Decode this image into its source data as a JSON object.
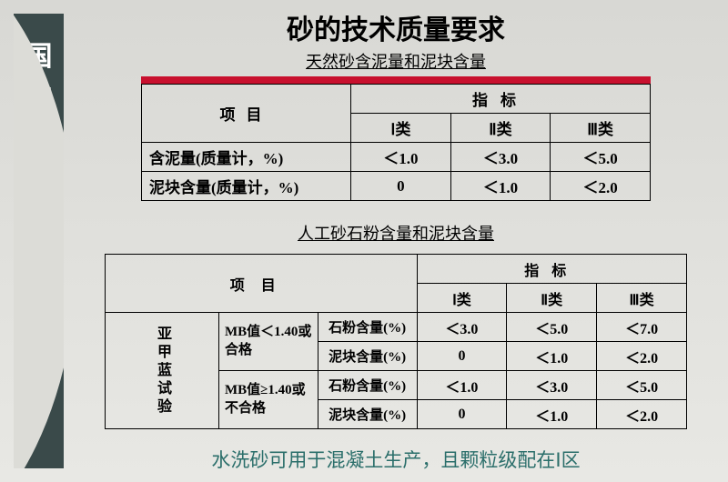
{
  "sidebar": {
    "label": "国家建筑用砂标准"
  },
  "header": {
    "title": "砂的技术质量要求",
    "subtitle1": "天然砂含泥量和泥块含量",
    "subtitle2": "人工砂石粉含量和泥块含量"
  },
  "table1": {
    "header_item": "项目",
    "header_indicator": "指标",
    "cols": {
      "c1": "Ⅰ类",
      "c2": "Ⅱ类",
      "c3": "Ⅲ类"
    },
    "rows": [
      {
        "label": "含泥量(质量计，%)",
        "v1": "＜1.0",
        "v2": "＜3.0",
        "v3": "＜5.0"
      },
      {
        "label": "泥块含量(质量计，%)",
        "v1": "0",
        "v2": "＜1.0",
        "v3": "＜2.0"
      }
    ]
  },
  "table2": {
    "side_label": "亚甲蓝试验",
    "header_item": "项目",
    "header_indicator": "指标",
    "cols": {
      "c1": "Ⅰ类",
      "c2": "Ⅱ类",
      "c3": "Ⅲ类"
    },
    "groups": [
      {
        "mb_label": "MB值＜1.40或合格",
        "rows": [
          {
            "param": "石粉含量(%)",
            "v1": "＜3.0",
            "v2": "＜5.0",
            "v3": "＜7.0"
          },
          {
            "param": "泥块含量(%)",
            "v1": "0",
            "v2": "＜1.0",
            "v3": "＜2.0"
          }
        ]
      },
      {
        "mb_label": "MB值≥1.40或不合格",
        "rows": [
          {
            "param": "石粉含量(%)",
            "v1": "＜1.0",
            "v2": "＜3.0",
            "v3": "＜5.0"
          },
          {
            "param": "泥块含量(%)",
            "v1": "0",
            "v2": "＜1.0",
            "v3": "＜2.0"
          }
        ]
      }
    ]
  },
  "footnote": "水洗砂可用于混凝土生产，且颗粒级配在Ⅰ区",
  "colors": {
    "red_bar": "#c8102e",
    "sidebar_bg": "#3a4a4a",
    "footnote_color": "#2a6e6a"
  }
}
